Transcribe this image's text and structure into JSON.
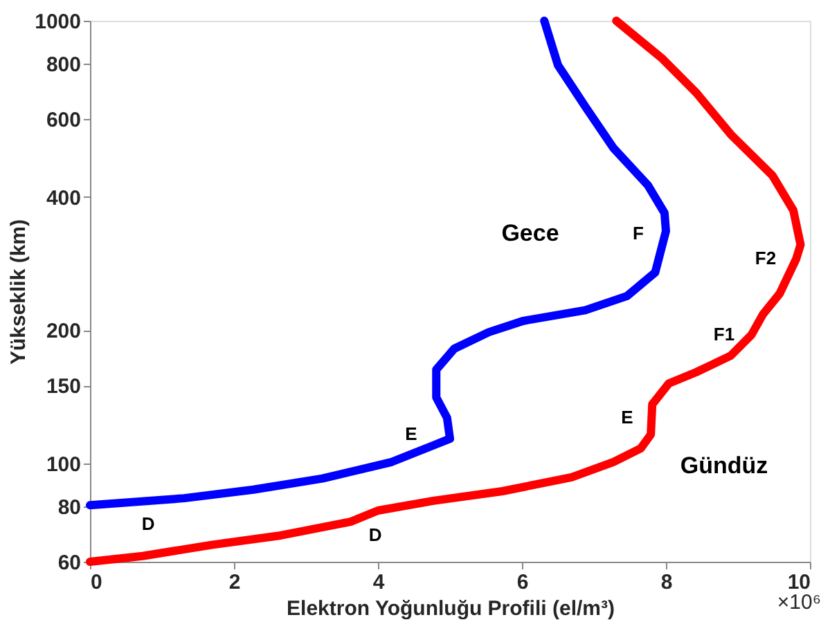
{
  "chart_data": {
    "type": "line",
    "xlabel": "Elektron Yoğunluğu Profili (el/m³)",
    "ylabel": "Yükseklik (km)",
    "xlim": [
      0,
      10
    ],
    "xticks": [
      0,
      2,
      4,
      6,
      8,
      10
    ],
    "ylim": [
      60,
      1000
    ],
    "yticks": [
      60,
      80,
      100,
      150,
      200,
      400,
      600,
      800,
      1000
    ],
    "log": "y",
    "grid": false,
    "marker": "none",
    "line_style": "solid",
    "series": [
      {
        "color": "#0000ff",
        "x": [
          0,
          1.31,
          2.27,
          3.23,
          4.19,
          4.77,
          5.0,
          4.96,
          4.81,
          4.81,
          5.06,
          5.54,
          6.02,
          6.88,
          7.46,
          7.85,
          8.0,
          7.98,
          7.75,
          7.27,
          6.88,
          6.5,
          6.31
        ],
        "values": [
          80.5,
          83.5,
          87.3,
          92.5,
          100.8,
          109.9,
          113.8,
          126.8,
          141,
          163,
          181.7,
          198,
          210,
          222,
          239,
          270,
          335,
          368,
          425,
          516,
          640,
          794,
          1000
        ]
      },
      {
        "color": "#ff0000",
        "x": [
          0,
          0.73,
          1.69,
          2.65,
          3.62,
          4.0,
          4.77,
          5.73,
          6.69,
          7.27,
          7.65,
          7.79,
          7.81,
          8.04,
          8.42,
          8.9,
          9.19,
          9.35,
          9.58,
          9.81,
          9.87,
          9.77,
          9.48,
          8.9,
          8.42,
          7.94,
          7.31
        ],
        "values": [
          60,
          61.8,
          65.5,
          68.8,
          73.9,
          78.3,
          82.4,
          86.6,
          93.1,
          100.8,
          108.2,
          116.3,
          136,
          151.7,
          160.8,
          175.2,
          195.5,
          217.6,
          242,
          290,
          312,
          373,
          447,
          554,
          688,
          824,
          1000
        ]
      }
    ],
    "annotations": [
      "Gece",
      "F",
      "E",
      "D",
      "Gündüz",
      "F2",
      "F1",
      "E",
      "D",
      "×10⁶"
    ]
  }
}
